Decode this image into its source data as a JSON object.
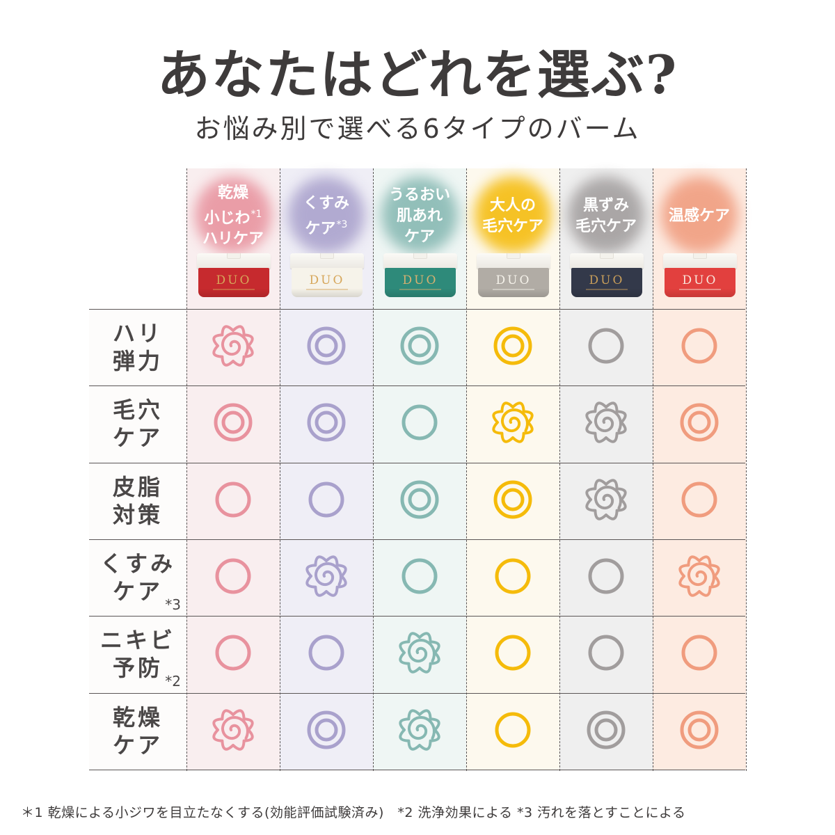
{
  "header": {
    "title": "あなたはどれを選ぶ?",
    "subtitle": "お悩み別で選べる6タイプのバーム"
  },
  "products": [
    {
      "lines": [
        "乾燥",
        "小じわ",
        "ハリケア"
      ],
      "note": "*1",
      "note_line": 1,
      "theme_color": "#e8929e",
      "column_bg": "#f9eeef",
      "jar_color": "#c62a2e",
      "jar_logo": "DUO",
      "jar_logo_color": "#d6a65a"
    },
    {
      "lines": [
        "くすみ",
        "ケア"
      ],
      "note": "*3",
      "note_line": 1,
      "theme_color": "#a9a1cc",
      "column_bg": "#efeef6",
      "jar_color": "#f6f3ea",
      "jar_logo": "DUO",
      "jar_logo_color": "#d6a65a"
    },
    {
      "lines": [
        "うるおい",
        "肌あれ",
        "ケア"
      ],
      "note": "",
      "note_line": -1,
      "theme_color": "#86b8b2",
      "column_bg": "#eff6f4",
      "jar_color": "#2e8a7a",
      "jar_logo": "DUO",
      "jar_logo_color": "#d6b070"
    },
    {
      "lines": [
        "大人の",
        "毛穴ケア"
      ],
      "note": "",
      "note_line": -1,
      "theme_color": "#f5bb0a",
      "column_bg": "#fdf9ee",
      "jar_color": "#b1aca5",
      "jar_logo": "DUO",
      "jar_logo_color": "#f5f2ea"
    },
    {
      "lines": [
        "黒ずみ",
        "毛穴ケア"
      ],
      "note": "",
      "note_line": -1,
      "theme_color": "#a19d9d",
      "column_bg": "#efefef",
      "jar_color": "#33394a",
      "jar_logo": "DUO",
      "jar_logo_color": "#c89e5a"
    },
    {
      "lines": [
        "温感ケア"
      ],
      "note": "",
      "note_line": -1,
      "theme_color": "#f09c7e",
      "column_bg": "#fdebe1",
      "jar_color": "#e2403e",
      "jar_logo": "DUO",
      "jar_logo_color": "#f8e6dc"
    }
  ],
  "rows": [
    {
      "lines": [
        "ハリ",
        "弾力"
      ],
      "note": "",
      "ratings": [
        "flower",
        "double",
        "double",
        "double",
        "single",
        "single"
      ]
    },
    {
      "lines": [
        "毛穴",
        "ケア"
      ],
      "note": "",
      "ratings": [
        "double",
        "double",
        "single",
        "flower",
        "flower",
        "double"
      ]
    },
    {
      "lines": [
        "皮脂",
        "対策"
      ],
      "note": "",
      "ratings": [
        "single",
        "single",
        "double",
        "double",
        "flower",
        "single"
      ]
    },
    {
      "lines": [
        "くすみ",
        "ケア"
      ],
      "note": "*3",
      "ratings": [
        "single",
        "flower",
        "single",
        "single",
        "single",
        "flower"
      ]
    },
    {
      "lines": [
        "ニキビ",
        "予防"
      ],
      "note": "*2",
      "ratings": [
        "single",
        "single",
        "flower",
        "single",
        "single",
        "single"
      ]
    },
    {
      "lines": [
        "乾燥",
        "ケア"
      ],
      "note": "",
      "ratings": [
        "flower",
        "double",
        "flower",
        "single",
        "double",
        "double"
      ]
    }
  ],
  "legend": {
    "flower": "flower-mark-icon (best)",
    "double": "double-circle-icon (very good)",
    "single": "circle-icon (good)"
  },
  "footnote": "＊1 乾燥による小ジワを目立たなくする(効能評価試験済み)　*2 洗浄効果による *3 汚れを落とすことによる"
}
